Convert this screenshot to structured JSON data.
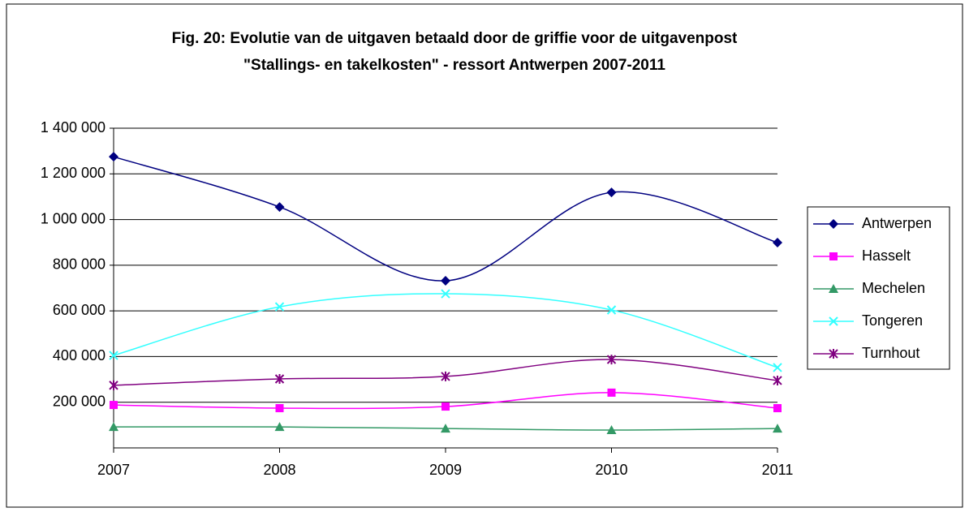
{
  "chart_data": {
    "type": "line",
    "title": [
      "Fig. 20: Evolutie van de uitgaven betaald door de griffie voor de uitgavenpost",
      "\"Stallings- en takelkosten\" - ressort Antwerpen 2007-2011"
    ],
    "x": [
      2007,
      2008,
      2009,
      2010,
      2011
    ],
    "xlim": [
      2007,
      2011
    ],
    "xticks": [
      2007,
      2008,
      2009,
      2010,
      2011
    ],
    "ylim": [
      0,
      1400000
    ],
    "yticks": [
      {
        "value": 200000,
        "label": "200 000"
      },
      {
        "value": 400000,
        "label": "400 000"
      },
      {
        "value": 600000,
        "label": "600 000"
      },
      {
        "value": 800000,
        "label": "800 000"
      },
      {
        "value": 1000000,
        "label": "1 000 000"
      },
      {
        "value": 1200000,
        "label": "1 200 000"
      },
      {
        "value": 1400000,
        "label": "1 400 000"
      }
    ],
    "grid": true,
    "smooth": true,
    "legend": "right",
    "series": [
      {
        "name": "Antwerpen",
        "color": "#000080",
        "marker": "diamond",
        "values": [
          1275000,
          1055000,
          732000,
          1119000,
          899000
        ]
      },
      {
        "name": "Hasselt",
        "color": "#ff00ff",
        "marker": "square",
        "values": [
          188000,
          174000,
          181000,
          242000,
          174000
        ]
      },
      {
        "name": "Mechelen",
        "color": "#339966",
        "marker": "triangle",
        "values": [
          92000,
          92000,
          85000,
          78000,
          85000
        ]
      },
      {
        "name": "Tongeren",
        "color": "#33ffff",
        "marker": "x",
        "values": [
          405000,
          618000,
          675000,
          604000,
          352000
        ]
      },
      {
        "name": "Turnhout",
        "color": "#800080",
        "marker": "star",
        "values": [
          274000,
          302000,
          313000,
          387000,
          295000
        ]
      }
    ]
  }
}
